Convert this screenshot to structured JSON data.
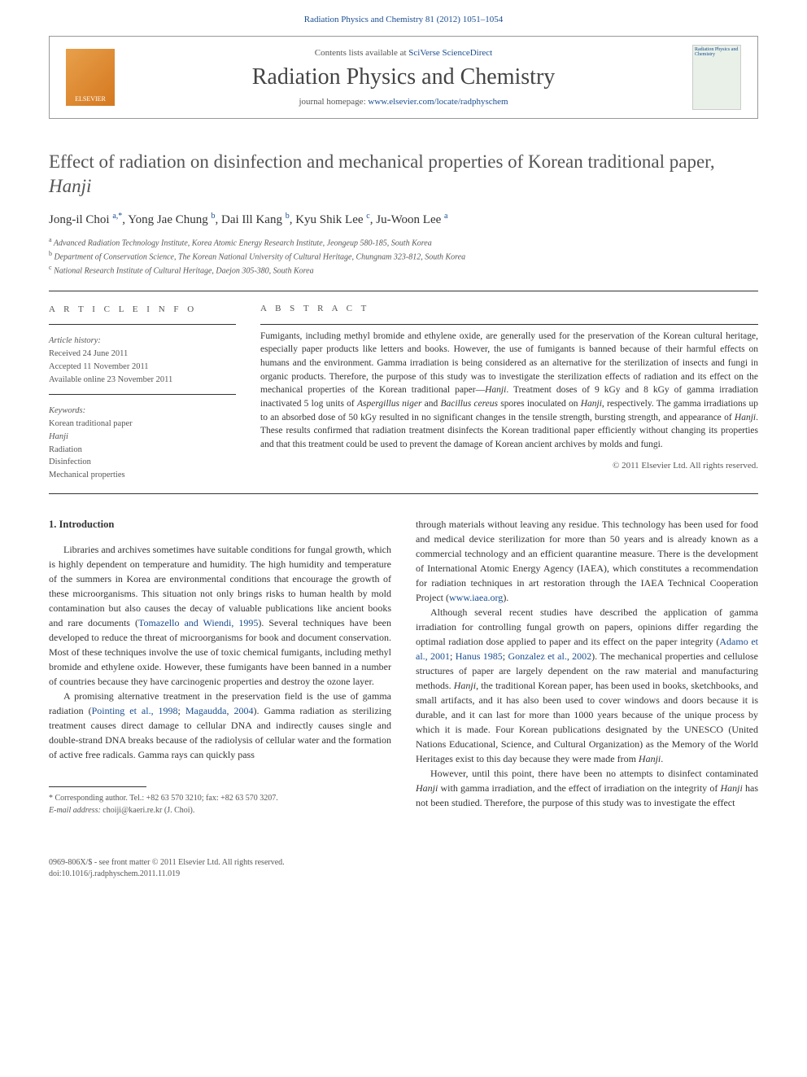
{
  "header": {
    "citation": "Radiation Physics and Chemistry 81 (2012) 1051–1054",
    "contents_prefix": "Contents lists available at ",
    "contents_link": "SciVerse ScienceDirect",
    "journal_name": "Radiation Physics and Chemistry",
    "homepage_prefix": "journal homepage: ",
    "homepage_url": "www.elsevier.com/locate/radphyschem",
    "elsevier_label": "ELSEVIER",
    "cover_label": "Radiation Physics and Chemistry"
  },
  "article": {
    "title_prefix": "Effect of radiation on disinfection and mechanical properties of Korean traditional paper, ",
    "title_italic": "Hanji",
    "authors_html": "Jong-il Choi <sup>a,*</sup>, Yong Jae Chung <sup>b</sup>, Dai Ill Kang <sup>b</sup>, Kyu Shik Lee <sup>c</sup>, Ju-Woon Lee <sup>a</sup>",
    "affiliations": [
      {
        "sup": "a",
        "text": "Advanced Radiation Technology Institute, Korea Atomic Energy Research Institute, Jeongeup 580-185, South Korea"
      },
      {
        "sup": "b",
        "text": "Department of Conservation Science, The Korean National University of Cultural Heritage, Chungnam 323-812, South Korea"
      },
      {
        "sup": "c",
        "text": "National Research Institute of Cultural Heritage, Daejon 305-380, South Korea"
      }
    ]
  },
  "info": {
    "heading": "A R T I C L E   I N F O",
    "history_head": "Article history:",
    "received": "Received 24 June 2011",
    "accepted": "Accepted 11 November 2011",
    "online": "Available online 23 November 2011",
    "keywords_head": "Keywords:",
    "keywords": [
      "Korean traditional paper",
      "Hanji",
      "Radiation",
      "Disinfection",
      "Mechanical properties"
    ]
  },
  "abstract": {
    "heading": "A B S T R A C T",
    "text_before_em1": "Fumigants, including methyl bromide and ethylene oxide, are generally used for the preservation of the Korean cultural heritage, especially paper products like letters and books. However, the use of fumigants is banned because of their harmful effects on humans and the environment. Gamma irradiation is being considered as an alternative for the sterilization of insects and fungi in organic products. Therefore, the purpose of this study was to investigate the sterilization effects of radiation and its effect on the mechanical properties of the Korean traditional paper—",
    "em1": "Hanji",
    "text_mid1": ". Treatment doses of 9 kGy and 8 kGy of gamma irradiation inactivated 5 log units of ",
    "em2": "Aspergillus niger",
    "text_mid2": " and ",
    "em3": "Bacillus cereus",
    "text_mid3": " spores inoculated on ",
    "em4": "Hanji",
    "text_mid4": ", respectively. The gamma irradiations up to an absorbed dose of 50 kGy resulted in no significant changes in the tensile strength, bursting strength, and appearance of ",
    "em5": "Hanji",
    "text_after": ". These results confirmed that radiation treatment disinfects the Korean traditional paper efficiently without changing its properties and that this treatment could be used to prevent the damage of Korean ancient archives by molds and fungi.",
    "copyright": "© 2011 Elsevier Ltd. All rights reserved."
  },
  "body": {
    "section_heading": "1. Introduction",
    "col1_p1_a": "Libraries and archives sometimes have suitable conditions for fungal growth, which is highly dependent on temperature and humidity. The high humidity and temperature of the summers in Korea are environmental conditions that encourage the growth of these microorganisms. This situation not only brings risks to human health by mold contamination but also causes the decay of valuable publications like ancient books and rare documents (",
    "col1_p1_ref1": "Tomazello and Wiendi, 1995",
    "col1_p1_b": "). Several techniques have been developed to reduce the threat of microorganisms for book and document conservation. Most of these techniques involve the use of toxic chemical fumigants, including methyl bromide and ethylene oxide. However, these fumigants have been banned in a number of countries because they have carcinogenic properties and destroy the ozone layer.",
    "col1_p2_a": "A promising alternative treatment in the preservation field is the use of gamma radiation (",
    "col1_p2_ref1": "Pointing et al., 1998",
    "col1_p2_sep": "; ",
    "col1_p2_ref2": "Magaudda, 2004",
    "col1_p2_b": "). Gamma radiation as sterilizing treatment causes direct damage to cellular DNA and indirectly causes single and double-strand DNA breaks because of the radiolysis of cellular water and the formation of active free radicals. Gamma rays can quickly pass",
    "col2_p1_a": "through materials without leaving any residue. This technology has been used for food and medical device sterilization for more than 50 years and is already known as a commercial technology and an efficient quarantine measure. There is the development of International Atomic Energy Agency (IAEA), which constitutes a recommendation for radiation techniques in art restoration through the IAEA Technical Cooperation Project (",
    "col2_p1_url": "www.iaea.org",
    "col2_p1_b": ").",
    "col2_p2_a": "Although several recent studies have described the application of gamma irradiation for controlling fungal growth on papers, opinions differ regarding the optimal radiation dose applied to paper and its effect on the paper integrity (",
    "col2_p2_ref1": "Adamo et al., 2001",
    "col2_p2_sep1": "; ",
    "col2_p2_ref2": "Hanus 1985",
    "col2_p2_sep2": "; ",
    "col2_p2_ref3": "Gonzalez et al., 2002",
    "col2_p2_b": "). The mechanical properties and cellulose structures of paper are largely dependent on the raw material and manufacturing methods. ",
    "col2_p2_em1": "Hanji",
    "col2_p2_c": ", the traditional Korean paper, has been used in books, sketchbooks, and small artifacts, and it has also been used to cover windows and doors because it is durable, and it can last for more than 1000 years because of the unique process by which it is made. Four Korean publications designated by the UNESCO (United Nations Educational, Science, and Cultural Organization) as the Memory of the World Heritages exist to this day because they were made from ",
    "col2_p2_em2": "Hanji",
    "col2_p2_d": ".",
    "col2_p3_a": "However, until this point, there have been no attempts to disinfect contaminated ",
    "col2_p3_em1": "Hanji",
    "col2_p3_b": " with gamma irradiation, and the effect of irradiation on the integrity of ",
    "col2_p3_em2": "Hanji",
    "col2_p3_c": " has not been studied. Therefore, the purpose of this study was to investigate the effect"
  },
  "footnote": {
    "corr": "* Corresponding author. Tel.: +82 63 570 3210; fax: +82 63 570 3207.",
    "email_label": "E-mail address:",
    "email": " choiji@kaeri.re.kr (J. Choi)."
  },
  "footer": {
    "line1": "0969-806X/$ - see front matter © 2011 Elsevier Ltd. All rights reserved.",
    "line2": "doi:10.1016/j.radphyschem.2011.11.019"
  }
}
